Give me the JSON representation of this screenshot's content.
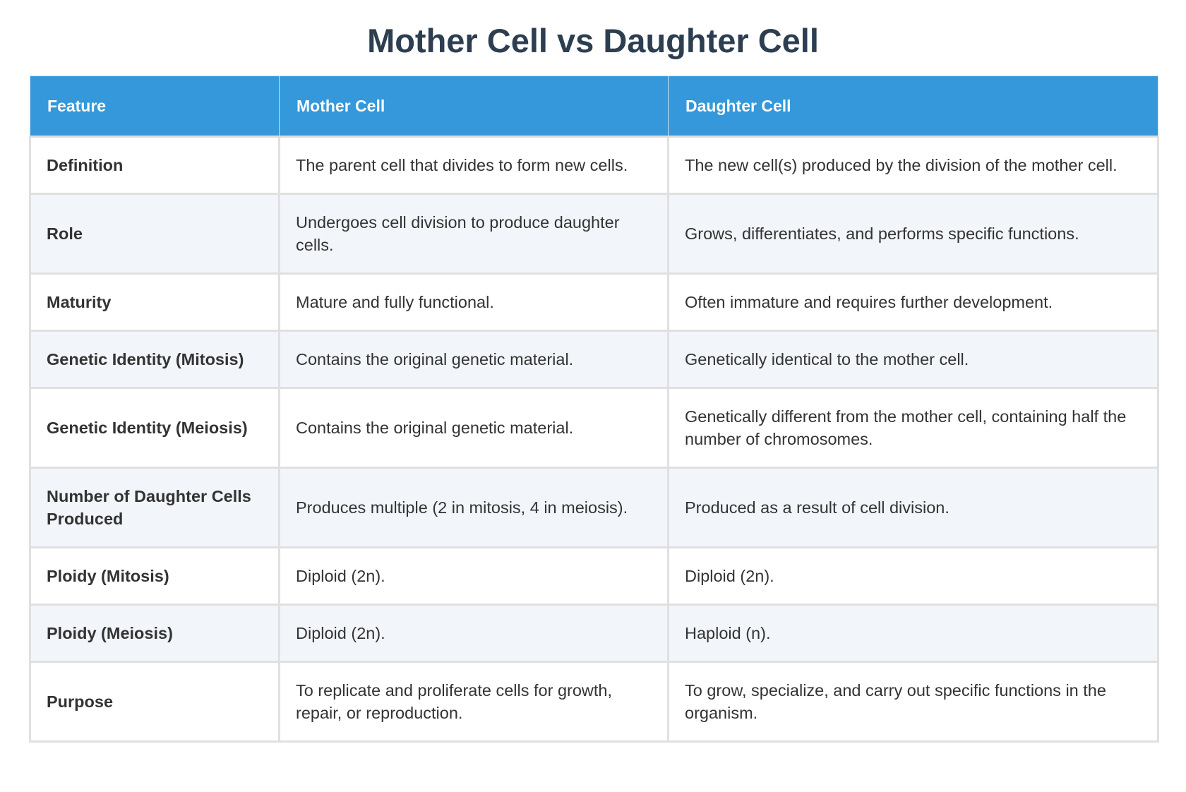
{
  "title": "Mother Cell vs Daughter Cell",
  "colors": {
    "header_bg": "#3498db",
    "title": "#2c3e50",
    "alt_row": "#f2f5fa"
  },
  "table": {
    "headers": [
      "Feature",
      "Mother Cell",
      "Daughter Cell"
    ],
    "rows": [
      [
        "Definition",
        "The parent cell that divides to form new cells.",
        "The new cell(s) produced by the division of the mother cell."
      ],
      [
        "Role",
        "Undergoes cell division to produce daughter cells.",
        "Grows, differentiates, and performs specific functions."
      ],
      [
        "Maturity",
        "Mature and fully functional.",
        "Often immature and requires further development."
      ],
      [
        "Genetic Identity (Mitosis)",
        "Contains the original genetic material.",
        "Genetically identical to the mother cell."
      ],
      [
        "Genetic Identity (Meiosis)",
        "Contains the original genetic material.",
        "Genetically different from the mother cell, containing half the number of chromosomes."
      ],
      [
        "Number of Daughter Cells Produced",
        "Produces multiple (2 in mitosis, 4 in meiosis).",
        "Produced as a result of cell division."
      ],
      [
        "Ploidy (Mitosis)",
        "Diploid (2n).",
        "Diploid (2n)."
      ],
      [
        "Ploidy (Meiosis)",
        "Diploid (2n).",
        "Haploid (n)."
      ],
      [
        "Purpose",
        "To replicate and proliferate cells for growth, repair, or reproduction.",
        "To grow, specialize, and carry out specific functions in the organism."
      ]
    ]
  }
}
